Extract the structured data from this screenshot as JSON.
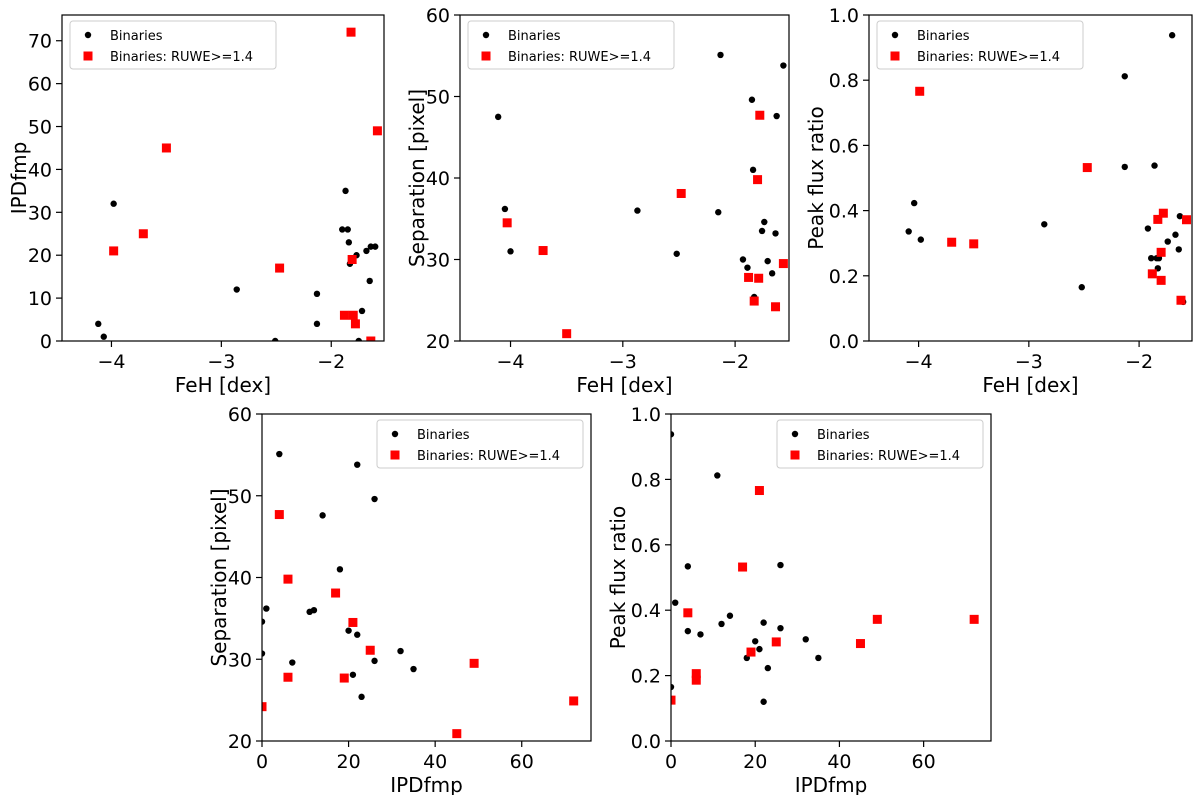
{
  "chart_data": [
    {
      "type": "scatter",
      "xlabel": "FeH [dex]",
      "ylabel": "IPDfmp",
      "xlim": [
        -4.45,
        -1.52
      ],
      "ylim": [
        0,
        76
      ],
      "xticks": [
        -4,
        -3,
        -2
      ],
      "xtick_labels": [
        "−4",
        "−3",
        "−2"
      ],
      "yticks": [
        0,
        10,
        20,
        30,
        40,
        50,
        60,
        70
      ],
      "ytick_labels": [
        "0",
        "10",
        "20",
        "30",
        "40",
        "50",
        "60",
        "70"
      ],
      "grid": false,
      "legend_position": "top-left",
      "series": [
        {
          "name": "Binaries",
          "marker": "circle",
          "color": "#000000",
          "x": [
            -4.12,
            -4.07,
            -3.98,
            -2.86,
            -2.51,
            -2.13,
            -2.13,
            -1.9,
            -1.87,
            -1.85,
            -1.84,
            -1.83,
            -1.77,
            -1.75,
            -1.72,
            -1.68,
            -1.65,
            -1.64,
            -1.6
          ],
          "y": [
            4,
            1,
            32,
            12,
            0,
            11,
            4,
            26,
            35,
            26,
            23,
            18,
            20,
            0,
            7,
            21,
            14,
            22,
            22
          ]
        },
        {
          "name": "Binaries: RUWE>=1.4",
          "marker": "square",
          "color": "#ff0000",
          "x": [
            -3.98,
            -3.71,
            -3.5,
            -2.47,
            -1.88,
            -1.82,
            -1.81,
            -1.8,
            -1.78,
            -1.64,
            -1.58
          ],
          "y": [
            21,
            25,
            45,
            17,
            6,
            72,
            19,
            6,
            4,
            0,
            49
          ]
        }
      ]
    },
    {
      "type": "scatter",
      "xlabel": "FeH [dex]",
      "ylabel": "Separation [pixel]",
      "xlim": [
        -4.45,
        -1.52
      ],
      "ylim": [
        20,
        60
      ],
      "xticks": [
        -4,
        -3,
        -2
      ],
      "xtick_labels": [
        "−4",
        "−3",
        "−2"
      ],
      "yticks": [
        20,
        30,
        40,
        50,
        60
      ],
      "ytick_labels": [
        "20",
        "30",
        "40",
        "50",
        "60"
      ],
      "grid": false,
      "legend_position": "top-left",
      "series": [
        {
          "name": "Binaries",
          "marker": "circle",
          "color": "#000000",
          "x": [
            -4.11,
            -4.05,
            -4.0,
            -2.87,
            -2.52,
            -2.15,
            -2.13,
            -1.93,
            -1.89,
            -1.85,
            -1.84,
            -1.83,
            -1.76,
            -1.74,
            -1.71,
            -1.67,
            -1.64,
            -1.63,
            -1.57
          ],
          "y": [
            47.5,
            36.2,
            31,
            36,
            30.7,
            35.8,
            55.1,
            30,
            29,
            49.6,
            41,
            25.4,
            33.5,
            34.6,
            29.8,
            28.3,
            33.2,
            47.6,
            53.8
          ]
        },
        {
          "name": "Binaries: RUWE>=1.4",
          "marker": "square",
          "color": "#ff0000",
          "x": [
            -4.03,
            -3.71,
            -3.5,
            -2.48,
            -1.88,
            -1.83,
            -1.8,
            -1.79,
            -1.78,
            -1.64,
            -1.57
          ],
          "y": [
            34.5,
            31.1,
            20.9,
            38.1,
            27.8,
            24.9,
            39.8,
            27.7,
            47.7,
            24.2,
            29.5
          ]
        }
      ]
    },
    {
      "type": "scatter",
      "xlabel": "FeH [dex]",
      "ylabel": "Peak flux ratio",
      "xlim": [
        -4.45,
        -1.52
      ],
      "ylim": [
        0.0,
        1.0
      ],
      "xticks": [
        -4,
        -3,
        -2
      ],
      "xtick_labels": [
        "−4",
        "−3",
        "−2"
      ],
      "yticks": [
        0.0,
        0.2,
        0.4,
        0.6,
        0.8,
        1.0
      ],
      "ytick_labels": [
        "0.0",
        "0.2",
        "0.4",
        "0.6",
        "0.8",
        "1.0"
      ],
      "grid": false,
      "legend_position": "top-left",
      "series": [
        {
          "name": "Binaries",
          "marker": "circle",
          "color": "#000000",
          "x": [
            -4.09,
            -4.04,
            -3.98,
            -2.86,
            -2.52,
            -2.13,
            -2.13,
            -1.92,
            -1.89,
            -1.86,
            -1.84,
            -1.83,
            -1.82,
            -1.74,
            -1.7,
            -1.67,
            -1.64,
            -1.63,
            -1.6
          ],
          "y": [
            0.336,
            0.423,
            0.311,
            0.358,
            0.165,
            0.534,
            0.812,
            0.345,
            0.254,
            0.538,
            0.254,
            0.223,
            0.254,
            0.305,
            0.938,
            0.326,
            0.281,
            0.383,
            0.12
          ]
        },
        {
          "name": "Binaries: RUWE>=1.4",
          "marker": "square",
          "color": "#ff0000",
          "x": [
            -3.99,
            -3.7,
            -3.5,
            -2.47,
            -1.88,
            -1.83,
            -1.8,
            -1.8,
            -1.78,
            -1.62,
            -1.57
          ],
          "y": [
            0.766,
            0.303,
            0.298,
            0.532,
            0.206,
            0.373,
            0.186,
            0.272,
            0.392,
            0.125,
            0.372
          ]
        }
      ]
    },
    {
      "type": "scatter",
      "xlabel": "IPDfmp",
      "ylabel": "Separation [pixel]",
      "xlim": [
        0,
        76
      ],
      "ylim": [
        20,
        60
      ],
      "xticks": [
        0,
        20,
        40,
        60
      ],
      "xtick_labels": [
        "0",
        "20",
        "40",
        "60"
      ],
      "yticks": [
        20,
        30,
        40,
        50,
        60
      ],
      "ytick_labels": [
        "20",
        "30",
        "40",
        "50",
        "60"
      ],
      "grid": false,
      "legend_position": "top-right",
      "series": [
        {
          "name": "Binaries",
          "marker": "circle",
          "color": "#000000",
          "x": [
            0,
            0,
            1,
            4,
            7,
            11,
            12,
            14,
            18,
            20,
            21,
            22,
            22,
            23,
            26,
            26,
            32,
            35
          ],
          "y": [
            30.7,
            34.6,
            36.2,
            55.1,
            29.6,
            35.8,
            36,
            47.6,
            41,
            33.5,
            28.1,
            53.8,
            33,
            25.4,
            29.8,
            49.6,
            31,
            28.8
          ]
        },
        {
          "name": "Binaries: RUWE>=1.4",
          "marker": "square",
          "color": "#ff0000",
          "x": [
            0,
            4,
            6,
            6,
            17,
            19,
            21,
            25,
            45,
            49,
            72
          ],
          "y": [
            24.2,
            47.7,
            39.8,
            27.8,
            38.1,
            27.7,
            34.5,
            31.1,
            20.9,
            29.5,
            24.9
          ]
        }
      ]
    },
    {
      "type": "scatter",
      "xlabel": "IPDfmp",
      "ylabel": "Peak flux ratio",
      "xlim": [
        0,
        76
      ],
      "ylim": [
        0.0,
        1.0
      ],
      "xticks": [
        0,
        20,
        40,
        60
      ],
      "xtick_labels": [
        "0",
        "20",
        "40",
        "60"
      ],
      "yticks": [
        0.0,
        0.2,
        0.4,
        0.6,
        0.8,
        1.0
      ],
      "ytick_labels": [
        "0.0",
        "0.2",
        "0.4",
        "0.6",
        "0.8",
        "1.0"
      ],
      "grid": false,
      "legend_position": "top-right",
      "series": [
        {
          "name": "Binaries",
          "marker": "circle",
          "color": "#000000",
          "x": [
            0,
            0,
            1,
            4,
            4,
            7,
            11,
            12,
            14,
            18,
            20,
            21,
            22,
            22,
            23,
            26,
            26,
            32,
            35
          ],
          "y": [
            0.938,
            0.165,
            0.423,
            0.534,
            0.336,
            0.326,
            0.812,
            0.358,
            0.383,
            0.254,
            0.305,
            0.281,
            0.12,
            0.362,
            0.223,
            0.345,
            0.538,
            0.311,
            0.254
          ]
        },
        {
          "name": "Binaries: RUWE>=1.4",
          "marker": "square",
          "color": "#ff0000",
          "x": [
            0,
            4,
            6,
            6,
            17,
            19,
            21,
            25,
            45,
            49,
            72
          ],
          "y": [
            0.125,
            0.392,
            0.206,
            0.186,
            0.532,
            0.272,
            0.766,
            0.303,
            0.298,
            0.372,
            0.372
          ]
        }
      ]
    }
  ]
}
